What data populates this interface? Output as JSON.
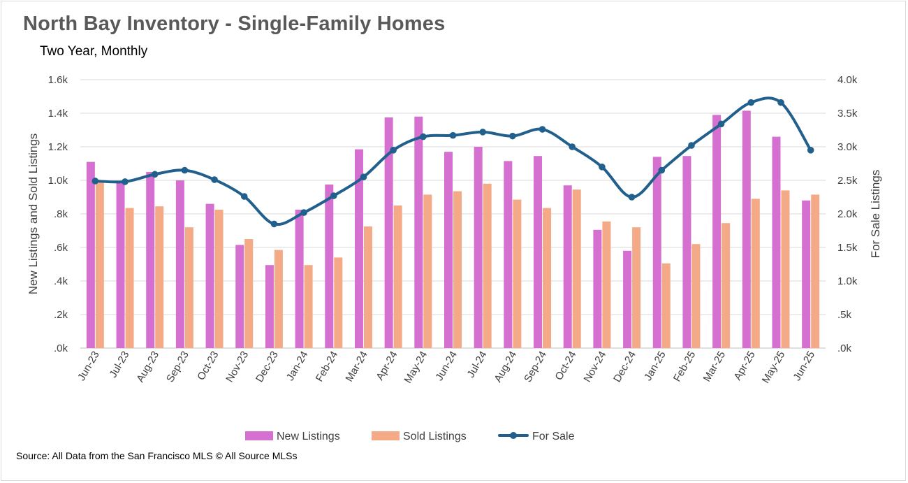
{
  "title": "North Bay Inventory - Single-Family Homes",
  "subtitle": "Two Year, Monthly",
  "source": "Source: All Data from the San Francisco MLS © All Source MLSs",
  "colors": {
    "new_listings": "#d56fd0",
    "sold_listings": "#f4aa86",
    "for_sale": "#215f8d",
    "grid": "#d9d9d9",
    "text": "#404040"
  },
  "chart_data": {
    "type": "bar",
    "categories": [
      "Jun-23",
      "Jul-23",
      "Aug-23",
      "Sep-23",
      "Oct-23",
      "Nov-23",
      "Dec-23",
      "Jan-24",
      "Feb-24",
      "Mar-24",
      "Apr-24",
      "May-24",
      "Jun-24",
      "Jul-24",
      "Aug-24",
      "Sep-24",
      "Oct-24",
      "Nov-24",
      "Dec-24",
      "Jan-25",
      "Feb-25",
      "Mar-25",
      "Apr-25",
      "May-25",
      "Jun-25"
    ],
    "series": [
      {
        "name": "New Listings",
        "type": "bar",
        "axis": "left",
        "values": [
          1110,
          990,
          1050,
          1000,
          860,
          615,
          495,
          825,
          975,
          1185,
          1375,
          1380,
          1170,
          1200,
          1115,
          1145,
          970,
          705,
          580,
          1140,
          1145,
          1390,
          1415,
          1260,
          880
        ]
      },
      {
        "name": "Sold Listings",
        "type": "bar",
        "axis": "left",
        "values": [
          995,
          835,
          845,
          720,
          825,
          650,
          585,
          495,
          540,
          725,
          850,
          915,
          935,
          980,
          885,
          835,
          945,
          755,
          720,
          505,
          620,
          745,
          890,
          940,
          915
        ]
      },
      {
        "name": "For Sale",
        "type": "line",
        "axis": "right",
        "values": [
          2490,
          2480,
          2590,
          2650,
          2510,
          2260,
          1850,
          2020,
          2270,
          2550,
          2950,
          3150,
          3170,
          3220,
          3160,
          3260,
          3000,
          2700,
          2250,
          2650,
          3020,
          3340,
          3660,
          3660,
          2950
        ]
      }
    ],
    "left_axis": {
      "label": "New Listings and Sold Listings",
      "min": 0,
      "max": 1600,
      "ticks": [
        0,
        200,
        400,
        600,
        800,
        1000,
        1200,
        1400,
        1600
      ],
      "tick_labels": [
        ".0k",
        ".2k",
        ".4k",
        ".6k",
        ".8k",
        "1.0k",
        "1.2k",
        "1.4k",
        "1.6k"
      ]
    },
    "right_axis": {
      "label": "For Sale Listings",
      "min": 0,
      "max": 4000,
      "ticks": [
        0,
        500,
        1000,
        1500,
        2000,
        2500,
        3000,
        3500,
        4000
      ],
      "tick_labels": [
        ".0k",
        ".5k",
        "1.0k",
        "1.5k",
        "2.0k",
        "2.5k",
        "3.0k",
        "3.5k",
        "4.0k"
      ]
    },
    "grid": true,
    "legend_position": "bottom"
  }
}
